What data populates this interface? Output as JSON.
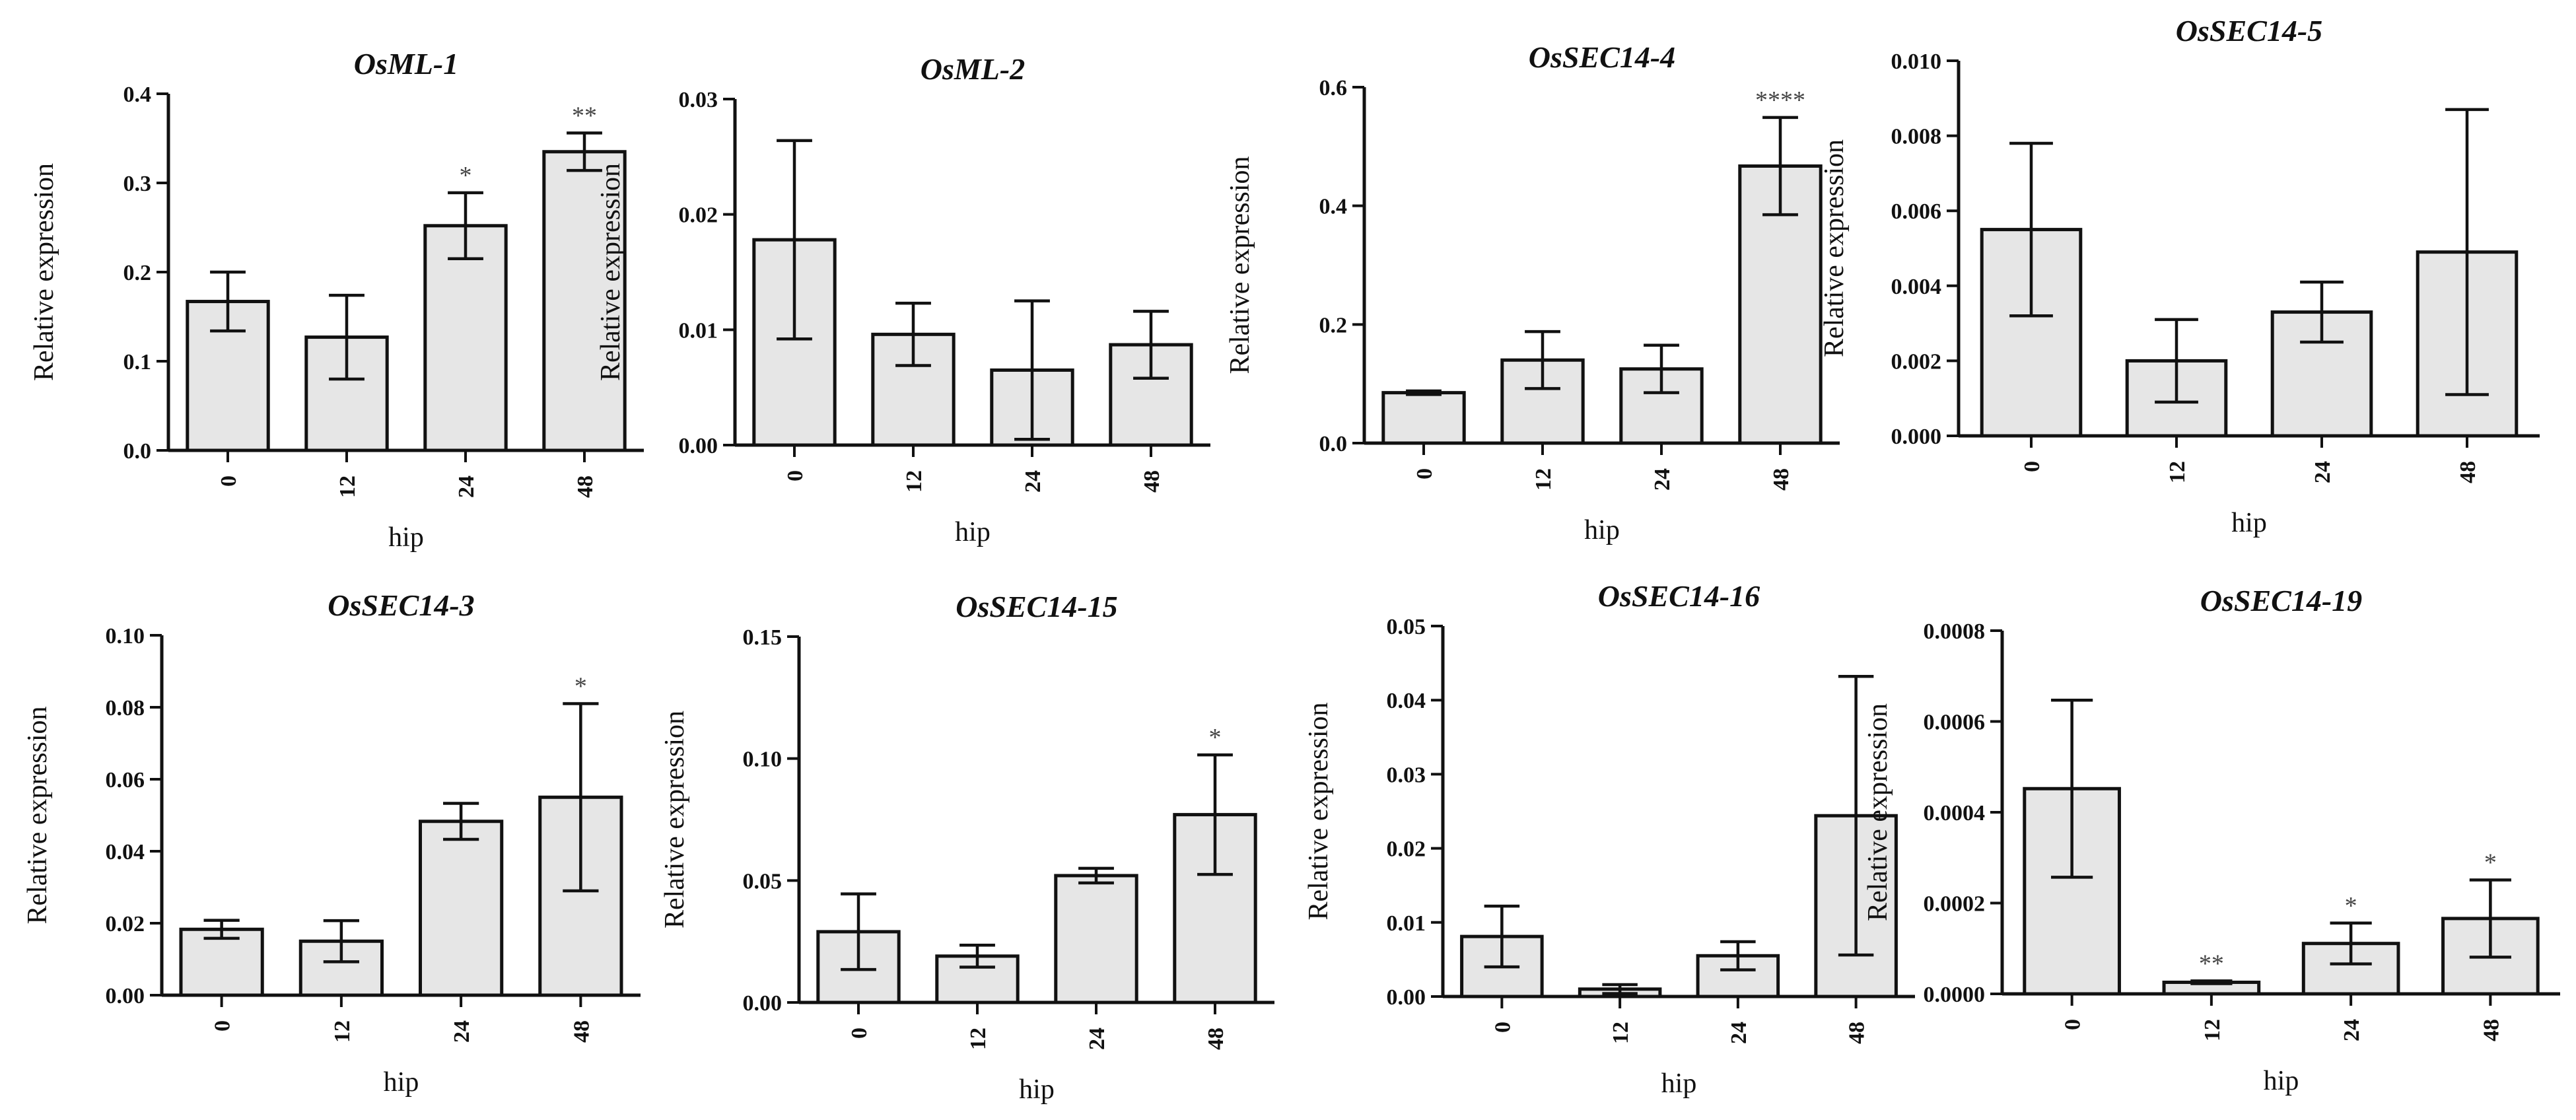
{
  "figure": {
    "background": "#ffffff",
    "bar_fill": "#e6e6e6",
    "line_color": "#111111"
  },
  "chart_data": [
    {
      "type": "bar",
      "title": "OsML-1",
      "xlabel": "hip",
      "ylabel": "Relative expression",
      "categories": [
        "0",
        "12",
        "24",
        "48"
      ],
      "values": [
        0.167,
        0.127,
        0.252,
        0.335
      ],
      "errors": [
        0.033,
        0.047,
        0.037,
        0.021
      ],
      "significance": [
        "",
        "",
        "*",
        "**"
      ],
      "ylim": [
        0,
        0.4
      ],
      "yticks": [
        "0.0",
        "0.1",
        "0.2",
        "0.3",
        "0.4"
      ]
    },
    {
      "type": "bar",
      "title": "OsML-2",
      "xlabel": "hip",
      "ylabel": "Relative expression",
      "categories": [
        "0",
        "12",
        "24",
        "48"
      ],
      "values": [
        0.0178,
        0.0096,
        0.0065,
        0.0087
      ],
      "errors": [
        0.0086,
        0.0027,
        0.006,
        0.0029
      ],
      "significance": [
        "",
        "",
        "",
        ""
      ],
      "ylim": [
        0,
        0.03
      ],
      "yticks": [
        "0.00",
        "0.01",
        "0.02",
        "0.03"
      ]
    },
    {
      "type": "bar",
      "title": "OsSEC14-4",
      "xlabel": "hip",
      "ylabel": "Relative expression",
      "categories": [
        "0",
        "12",
        "24",
        "48"
      ],
      "values": [
        0.085,
        0.14,
        0.125,
        0.467
      ],
      "errors": [
        0.003,
        0.048,
        0.04,
        0.082
      ],
      "significance": [
        "",
        "",
        "",
        "****"
      ],
      "ylim": [
        0,
        0.6
      ],
      "yticks": [
        "0.0",
        "0.2",
        "0.4",
        "0.6"
      ]
    },
    {
      "type": "bar",
      "title": "OsSEC14-5",
      "xlabel": "hip",
      "ylabel": "Relative expression",
      "categories": [
        "0",
        "12",
        "24",
        "48"
      ],
      "values": [
        0.0055,
        0.002,
        0.0033,
        0.0049
      ],
      "errors": [
        0.0023,
        0.0011,
        0.0008,
        0.0038
      ],
      "significance": [
        "",
        "",
        "",
        ""
      ],
      "ylim": [
        0,
        0.01
      ],
      "yticks": [
        "0.000",
        "0.002",
        "0.004",
        "0.006",
        "0.008",
        "0.010"
      ]
    },
    {
      "type": "bar",
      "title": "OsSEC14-3",
      "xlabel": "hip",
      "ylabel": "Relative expression",
      "categories": [
        "0",
        "12",
        "24",
        "48"
      ],
      "values": [
        0.0183,
        0.015,
        0.0483,
        0.055
      ],
      "errors": [
        0.0025,
        0.0057,
        0.005,
        0.026
      ],
      "significance": [
        "",
        "",
        "",
        "*"
      ],
      "ylim": [
        0,
        0.1
      ],
      "yticks": [
        "0.00",
        "0.02",
        "0.04",
        "0.06",
        "0.08",
        "0.10"
      ]
    },
    {
      "type": "bar",
      "title": "OsSEC14-15",
      "xlabel": "hip",
      "ylabel": "Relative expression",
      "categories": [
        "0",
        "12",
        "24",
        "48"
      ],
      "values": [
        0.029,
        0.019,
        0.052,
        0.077
      ],
      "errors": [
        0.0155,
        0.0045,
        0.003,
        0.0245
      ],
      "significance": [
        "",
        "",
        "",
        "*"
      ],
      "ylim": [
        0,
        0.15
      ],
      "yticks": [
        "0.00",
        "0.05",
        "0.10",
        "0.15"
      ]
    },
    {
      "type": "bar",
      "title": "OsSEC14-16",
      "xlabel": "hip",
      "ylabel": "Relative expression",
      "categories": [
        "0",
        "12",
        "24",
        "48"
      ],
      "values": [
        0.0081,
        0.001,
        0.0055,
        0.0244
      ],
      "errors": [
        0.0041,
        0.0006,
        0.0019,
        0.0188
      ],
      "significance": [
        "",
        "",
        "",
        ""
      ],
      "ylim": [
        0,
        0.05
      ],
      "yticks": [
        "0.00",
        "0.01",
        "0.02",
        "0.03",
        "0.04",
        "0.05"
      ]
    },
    {
      "type": "bar",
      "title": "OsSEC14-19",
      "xlabel": "hip",
      "ylabel": "Relative expression",
      "categories": [
        "0",
        "12",
        "24",
        "48"
      ],
      "values": [
        0.000452,
        2.55e-05,
        0.000111,
        0.000166
      ],
      "errors": [
        0.000195,
        3e-06,
        4.5e-05,
        8.5e-05
      ],
      "significance": [
        "",
        "**",
        "*",
        "*"
      ],
      "ylim": [
        0,
        0.0008
      ],
      "yticks": [
        "0.0000",
        "0.0002",
        "0.0004",
        "0.0006",
        "0.0008"
      ]
    }
  ]
}
